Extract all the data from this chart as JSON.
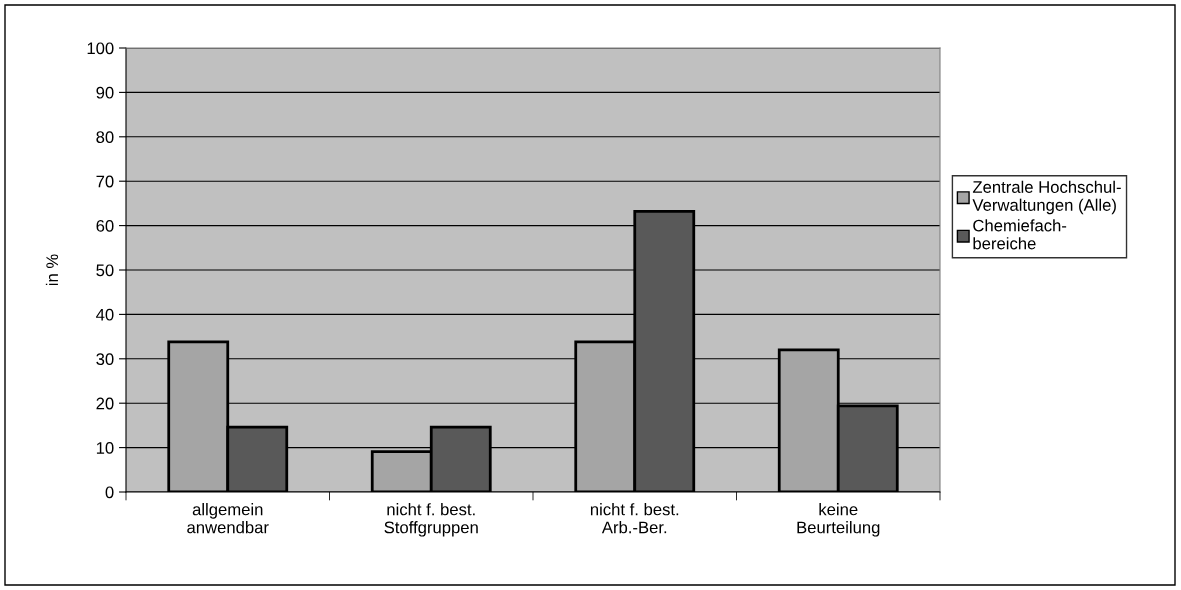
{
  "chart_data": {
    "type": "bar",
    "ylabel": "in %",
    "categories": [
      "allgemein\nanwendbar",
      "nicht f. best.\nStoffgruppen",
      "nicht f. best.\nArb.-Ber.",
      "keine\nBeurteilung"
    ],
    "series": [
      {
        "name": "Zentrale Hochschul-\nVerwaltungen (Alle)",
        "color": "#a5a5a5",
        "values": [
          33.8,
          9.1,
          33.8,
          32.0
        ]
      },
      {
        "name": "Chemiefach-\nbereiche",
        "color": "#595959",
        "values": [
          14.6,
          14.6,
          63.2,
          19.4
        ]
      }
    ],
    "ylim": [
      0,
      100
    ],
    "yticks": [
      0,
      10,
      20,
      30,
      40,
      50,
      60,
      70,
      80,
      90,
      100
    ],
    "grid": "y",
    "legend": "right"
  }
}
